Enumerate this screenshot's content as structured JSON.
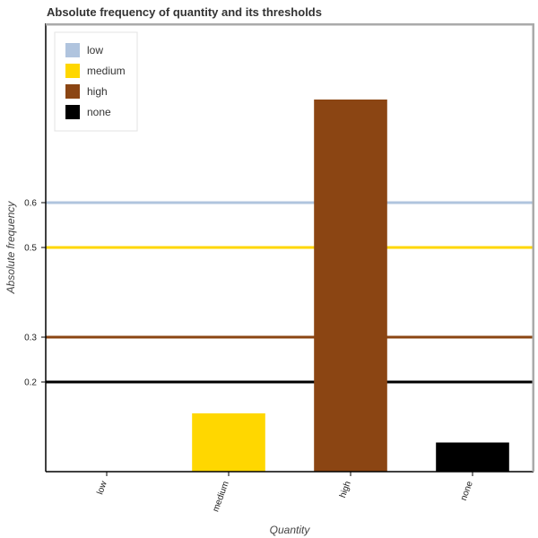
{
  "chart_data": {
    "type": "bar",
    "title": "Absolute frequency of quantity and its thresholds",
    "xlabel": "Quantity",
    "ylabel": "Absolute frequency",
    "categories": [
      "low",
      "medium",
      "high",
      "none"
    ],
    "values": [
      0,
      0.13,
      0.83,
      0.065
    ],
    "colors": {
      "low": "#b0c4de",
      "medium": "#ffd700",
      "high": "#8b4513",
      "none": "#000000"
    },
    "yticks": [
      0.2,
      0.3,
      0.5,
      0.6
    ],
    "ylim": [
      0,
      1
    ],
    "thresholds": [
      {
        "name": "low",
        "value": 0.6
      },
      {
        "name": "medium",
        "value": 0.5
      },
      {
        "name": "high",
        "value": 0.3
      },
      {
        "name": "none",
        "value": 0.2
      }
    ],
    "legend": {
      "position": "top-left",
      "items": [
        "low",
        "medium",
        "high",
        "none"
      ]
    },
    "grid": false
  }
}
